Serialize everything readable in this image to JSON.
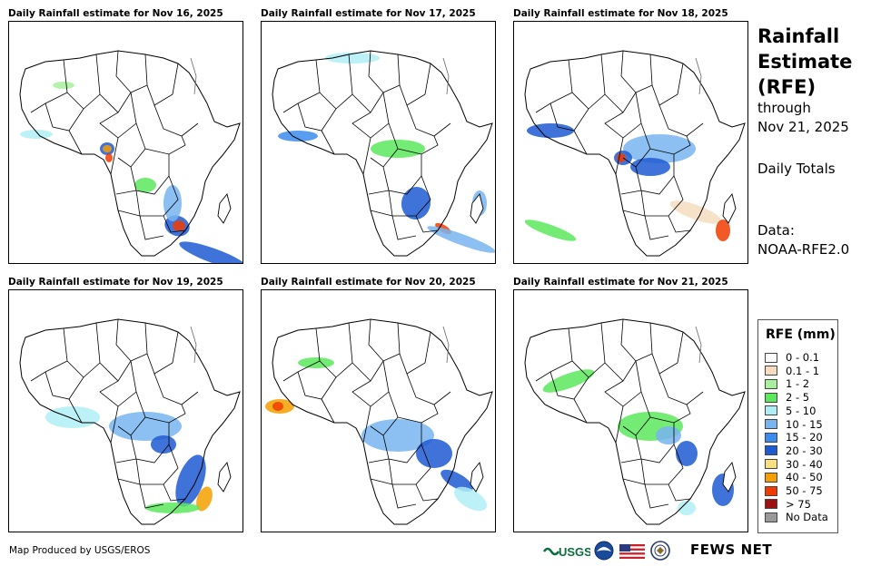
{
  "panels": [
    {
      "title": "Daily Rainfall estimate for Nov 16, 2025"
    },
    {
      "title": "Daily Rainfall estimate for Nov 17, 2025"
    },
    {
      "title": "Daily Rainfall estimate for Nov 18, 2025"
    },
    {
      "title": "Daily Rainfall estimate for Nov 19, 2025"
    },
    {
      "title": "Daily Rainfall estimate for Nov 20, 2025"
    },
    {
      "title": "Daily Rainfall estimate for Nov 21, 2025"
    }
  ],
  "side": {
    "title": "Rainfall Estimate (RFE)",
    "through": "through",
    "date": "Nov 21, 2025",
    "totals": "Daily Totals",
    "data_label": "Data:",
    "data_source": "NOAA-RFE2.0"
  },
  "legend": {
    "title": "RFE (mm)",
    "items": [
      {
        "label": "0 - 0.1",
        "color": "#ffffff"
      },
      {
        "label": "0.1 - 1",
        "color": "#f5dcc0"
      },
      {
        "label": "1 - 2",
        "color": "#a8f0a0"
      },
      {
        "label": "2 - 5",
        "color": "#5ce85c"
      },
      {
        "label": "5 - 10",
        "color": "#b0eef6"
      },
      {
        "label": "10 - 15",
        "color": "#78b4f0"
      },
      {
        "label": "15 - 20",
        "color": "#3c8cf0"
      },
      {
        "label": "20 - 30",
        "color": "#1e5ad2"
      },
      {
        "label": "30 - 40",
        "color": "#f8e080"
      },
      {
        "label": "40 - 50",
        "color": "#f5a000"
      },
      {
        "label": "50 - 75",
        "color": "#f03c00"
      },
      {
        "label": "> 75",
        "color": "#a01010"
      },
      {
        "label": "No Data",
        "color": "#999999"
      }
    ]
  },
  "footer": {
    "credit": "Map Produced by USGS/EROS",
    "usgs_logo": "USGS",
    "fews_logo": "FEWS NET"
  }
}
